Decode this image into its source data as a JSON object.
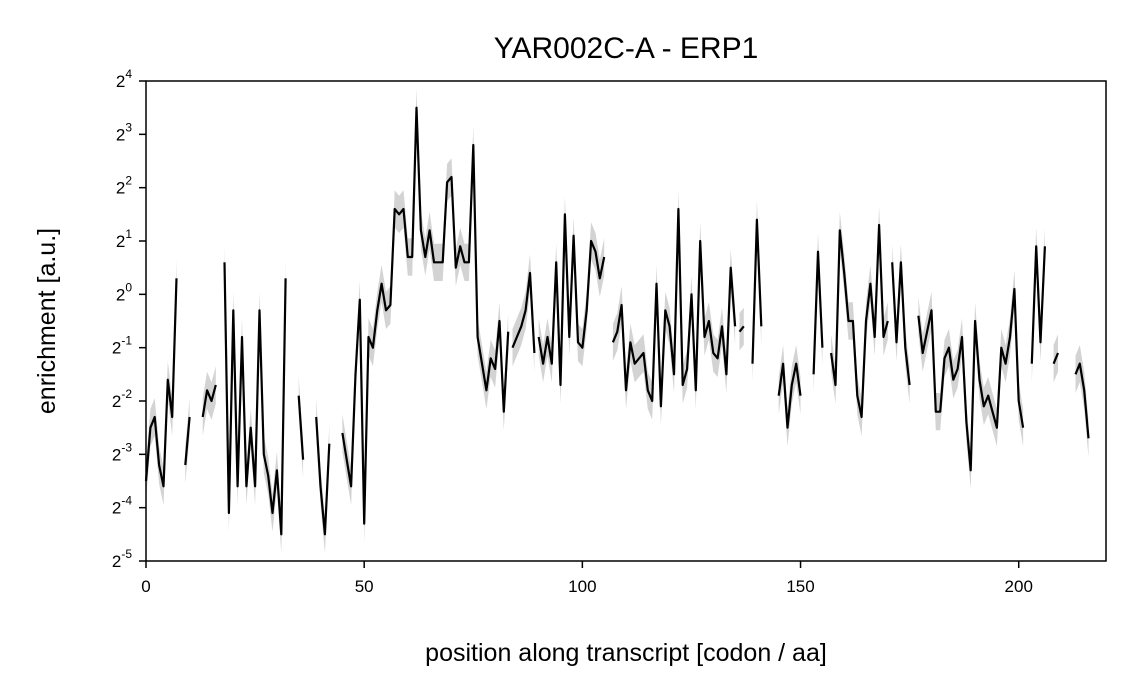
{
  "chart_data": {
    "type": "line",
    "title": "YAR002C-A - ERP1",
    "xlabel": "position along transcript [codon / aa]",
    "ylabel": "enrichment [a.u.]",
    "xlim": [
      0,
      220
    ],
    "ylim_log2": [
      -5,
      4
    ],
    "y_scale": "log2",
    "x_ticks": [
      0,
      50,
      100,
      150,
      200
    ],
    "y_tick_base": "2",
    "y_tick_exponents": [
      "-5",
      "-4",
      "-3",
      "-2",
      "-1",
      "0",
      "1",
      "2",
      "3",
      "4"
    ],
    "line_color": "#000000",
    "band_color": "#d3d3d3",
    "grid": false,
    "series": [
      {
        "points": [
          [
            0,
            -3.5
          ],
          [
            1,
            -2.5
          ],
          [
            2,
            -2.3
          ],
          [
            3,
            -3.2
          ],
          [
            4,
            -3.6
          ],
          [
            5,
            -1.6
          ],
          [
            6,
            -2.3
          ],
          [
            7,
            0.3
          ],
          null,
          [
            9,
            -3.2
          ],
          [
            10,
            -2.3
          ],
          null,
          [
            13,
            -2.3
          ],
          [
            14,
            -1.8
          ],
          [
            15,
            -2.0
          ],
          [
            16,
            -1.7
          ],
          null,
          [
            18,
            0.6
          ],
          [
            19,
            -4.1
          ],
          [
            20,
            -0.3
          ],
          [
            21,
            -3.6
          ],
          [
            22,
            -0.8
          ],
          [
            23,
            -3.6
          ],
          [
            24,
            -2.5
          ],
          [
            25,
            -3.6
          ],
          [
            26,
            -0.3
          ],
          [
            27,
            -3.0
          ],
          [
            28,
            -3.4
          ],
          [
            29,
            -4.1
          ],
          [
            30,
            -3.3
          ],
          [
            31,
            -4.5
          ],
          [
            32,
            0.3
          ],
          null,
          [
            35,
            -1.9
          ],
          [
            36,
            -3.1
          ],
          null,
          [
            39,
            -2.3
          ],
          [
            40,
            -3.6
          ],
          [
            41,
            -4.5
          ],
          [
            42,
            -2.8
          ],
          null,
          [
            45,
            -2.6
          ],
          [
            46,
            -3.1
          ],
          [
            47,
            -3.6
          ],
          [
            48,
            -1.5
          ],
          [
            49,
            -0.1
          ],
          [
            50,
            -4.3
          ],
          [
            51,
            -0.8
          ],
          [
            52,
            -1.0
          ],
          [
            53,
            -0.3
          ],
          [
            54,
            0.2
          ],
          [
            55,
            -0.3
          ],
          [
            56,
            -0.2
          ],
          [
            57,
            1.6
          ],
          [
            58,
            1.5
          ],
          [
            59,
            1.6
          ],
          [
            60,
            0.7
          ],
          [
            61,
            0.7
          ],
          [
            62,
            3.5
          ],
          [
            63,
            1.2
          ],
          [
            64,
            0.7
          ],
          [
            65,
            1.2
          ],
          [
            66,
            0.6
          ],
          [
            67,
            0.6
          ],
          [
            68,
            0.6
          ],
          [
            69,
            2.1
          ],
          [
            70,
            2.2
          ],
          [
            71,
            0.5
          ],
          [
            72,
            0.9
          ],
          [
            73,
            0.6
          ],
          [
            74,
            0.6
          ],
          [
            75,
            2.8
          ],
          [
            76,
            -0.8
          ],
          [
            77,
            -1.3
          ],
          [
            78,
            -1.8
          ],
          [
            79,
            -1.2
          ],
          [
            80,
            -1.4
          ],
          [
            81,
            -0.5
          ],
          [
            82,
            -2.2
          ],
          [
            83,
            -0.7
          ],
          null,
          [
            84,
            -1.0
          ],
          [
            85,
            -0.8
          ],
          [
            86,
            -0.6
          ],
          [
            87,
            -0.3
          ],
          [
            88,
            0.4
          ],
          [
            89,
            -1.1
          ],
          null,
          [
            90,
            -0.8
          ],
          [
            91,
            -1.3
          ],
          [
            92,
            -0.8
          ],
          [
            93,
            -1.3
          ],
          [
            94,
            0.6
          ],
          [
            95,
            -1.7
          ],
          [
            96,
            1.5
          ],
          [
            97,
            -0.8
          ],
          [
            98,
            1.1
          ],
          [
            99,
            -0.9
          ],
          [
            100,
            -1.0
          ],
          [
            101,
            -0.3
          ],
          [
            102,
            1.0
          ],
          [
            103,
            0.8
          ],
          [
            104,
            0.3
          ],
          [
            105,
            0.7
          ],
          null,
          [
            107,
            -0.9
          ],
          [
            108,
            -0.7
          ],
          [
            109,
            -0.2
          ],
          [
            110,
            -1.8
          ],
          [
            111,
            -0.9
          ],
          [
            112,
            -1.3
          ],
          [
            113,
            -1.2
          ],
          [
            114,
            -1.1
          ],
          [
            115,
            -1.8
          ],
          [
            116,
            -2.0
          ],
          [
            117,
            0.2
          ],
          [
            118,
            -2.1
          ],
          [
            119,
            -0.3
          ],
          [
            120,
            -0.6
          ],
          [
            121,
            -1.5
          ],
          [
            122,
            1.6
          ],
          [
            123,
            -1.7
          ],
          [
            124,
            -1.4
          ],
          [
            125,
            0.0
          ],
          [
            126,
            -1.8
          ],
          [
            127,
            1.0
          ],
          [
            128,
            -0.8
          ],
          [
            129,
            -0.5
          ],
          [
            130,
            -1.1
          ],
          [
            131,
            -1.2
          ],
          [
            132,
            -0.6
          ],
          [
            133,
            -1.5
          ],
          [
            134,
            0.5
          ],
          [
            135,
            -0.6
          ],
          null,
          [
            136,
            -0.7
          ],
          [
            137,
            -0.6
          ],
          null,
          [
            139,
            -1.3
          ],
          [
            140,
            1.4
          ],
          [
            141,
            -0.6
          ],
          null,
          [
            145,
            -1.9
          ],
          [
            146,
            -1.3
          ],
          [
            147,
            -2.5
          ],
          [
            148,
            -1.7
          ],
          [
            149,
            -1.3
          ],
          [
            150,
            -1.9
          ],
          null,
          [
            153,
            -1.5
          ],
          [
            154,
            0.8
          ],
          [
            155,
            -1.0
          ],
          null,
          [
            157,
            -1.1
          ],
          [
            158,
            -1.7
          ],
          [
            159,
            1.2
          ],
          [
            160,
            0.4
          ],
          [
            161,
            -0.5
          ],
          [
            162,
            -0.5
          ],
          [
            163,
            -1.9
          ],
          [
            164,
            -2.3
          ],
          [
            165,
            -0.5
          ],
          [
            166,
            0.2
          ],
          [
            167,
            -0.8
          ],
          [
            168,
            1.3
          ],
          [
            169,
            -0.8
          ],
          [
            170,
            -0.5
          ],
          null,
          [
            171,
            0.6
          ],
          [
            172,
            -0.9
          ],
          [
            173,
            0.6
          ],
          [
            174,
            -1.0
          ],
          [
            175,
            -1.7
          ],
          null,
          [
            177,
            -0.4
          ],
          [
            178,
            -1.1
          ],
          [
            179,
            -0.7
          ],
          [
            180,
            -0.3
          ],
          [
            181,
            -2.2
          ],
          [
            182,
            -2.2
          ],
          [
            183,
            -1.2
          ],
          [
            184,
            -1.0
          ],
          [
            185,
            -1.6
          ],
          [
            186,
            -1.4
          ],
          [
            187,
            -0.8
          ],
          [
            188,
            -2.4
          ],
          [
            189,
            -3.3
          ],
          [
            190,
            -0.5
          ],
          [
            191,
            -1.6
          ],
          [
            192,
            -2.1
          ],
          [
            193,
            -1.9
          ],
          [
            194,
            -2.2
          ],
          [
            195,
            -2.5
          ],
          [
            196,
            -1.0
          ],
          [
            197,
            -1.3
          ],
          [
            198,
            -0.8
          ],
          [
            199,
            0.1
          ],
          [
            200,
            -2.0
          ],
          [
            201,
            -2.5
          ],
          null,
          [
            203,
            -1.3
          ],
          [
            204,
            0.9
          ],
          [
            205,
            -0.9
          ],
          [
            206,
            0.9
          ],
          null,
          [
            208,
            -1.3
          ],
          [
            209,
            -1.1
          ],
          null,
          [
            213,
            -1.5
          ],
          [
            214,
            -1.3
          ],
          [
            215,
            -1.8
          ],
          [
            216,
            -2.7
          ]
        ]
      }
    ]
  }
}
